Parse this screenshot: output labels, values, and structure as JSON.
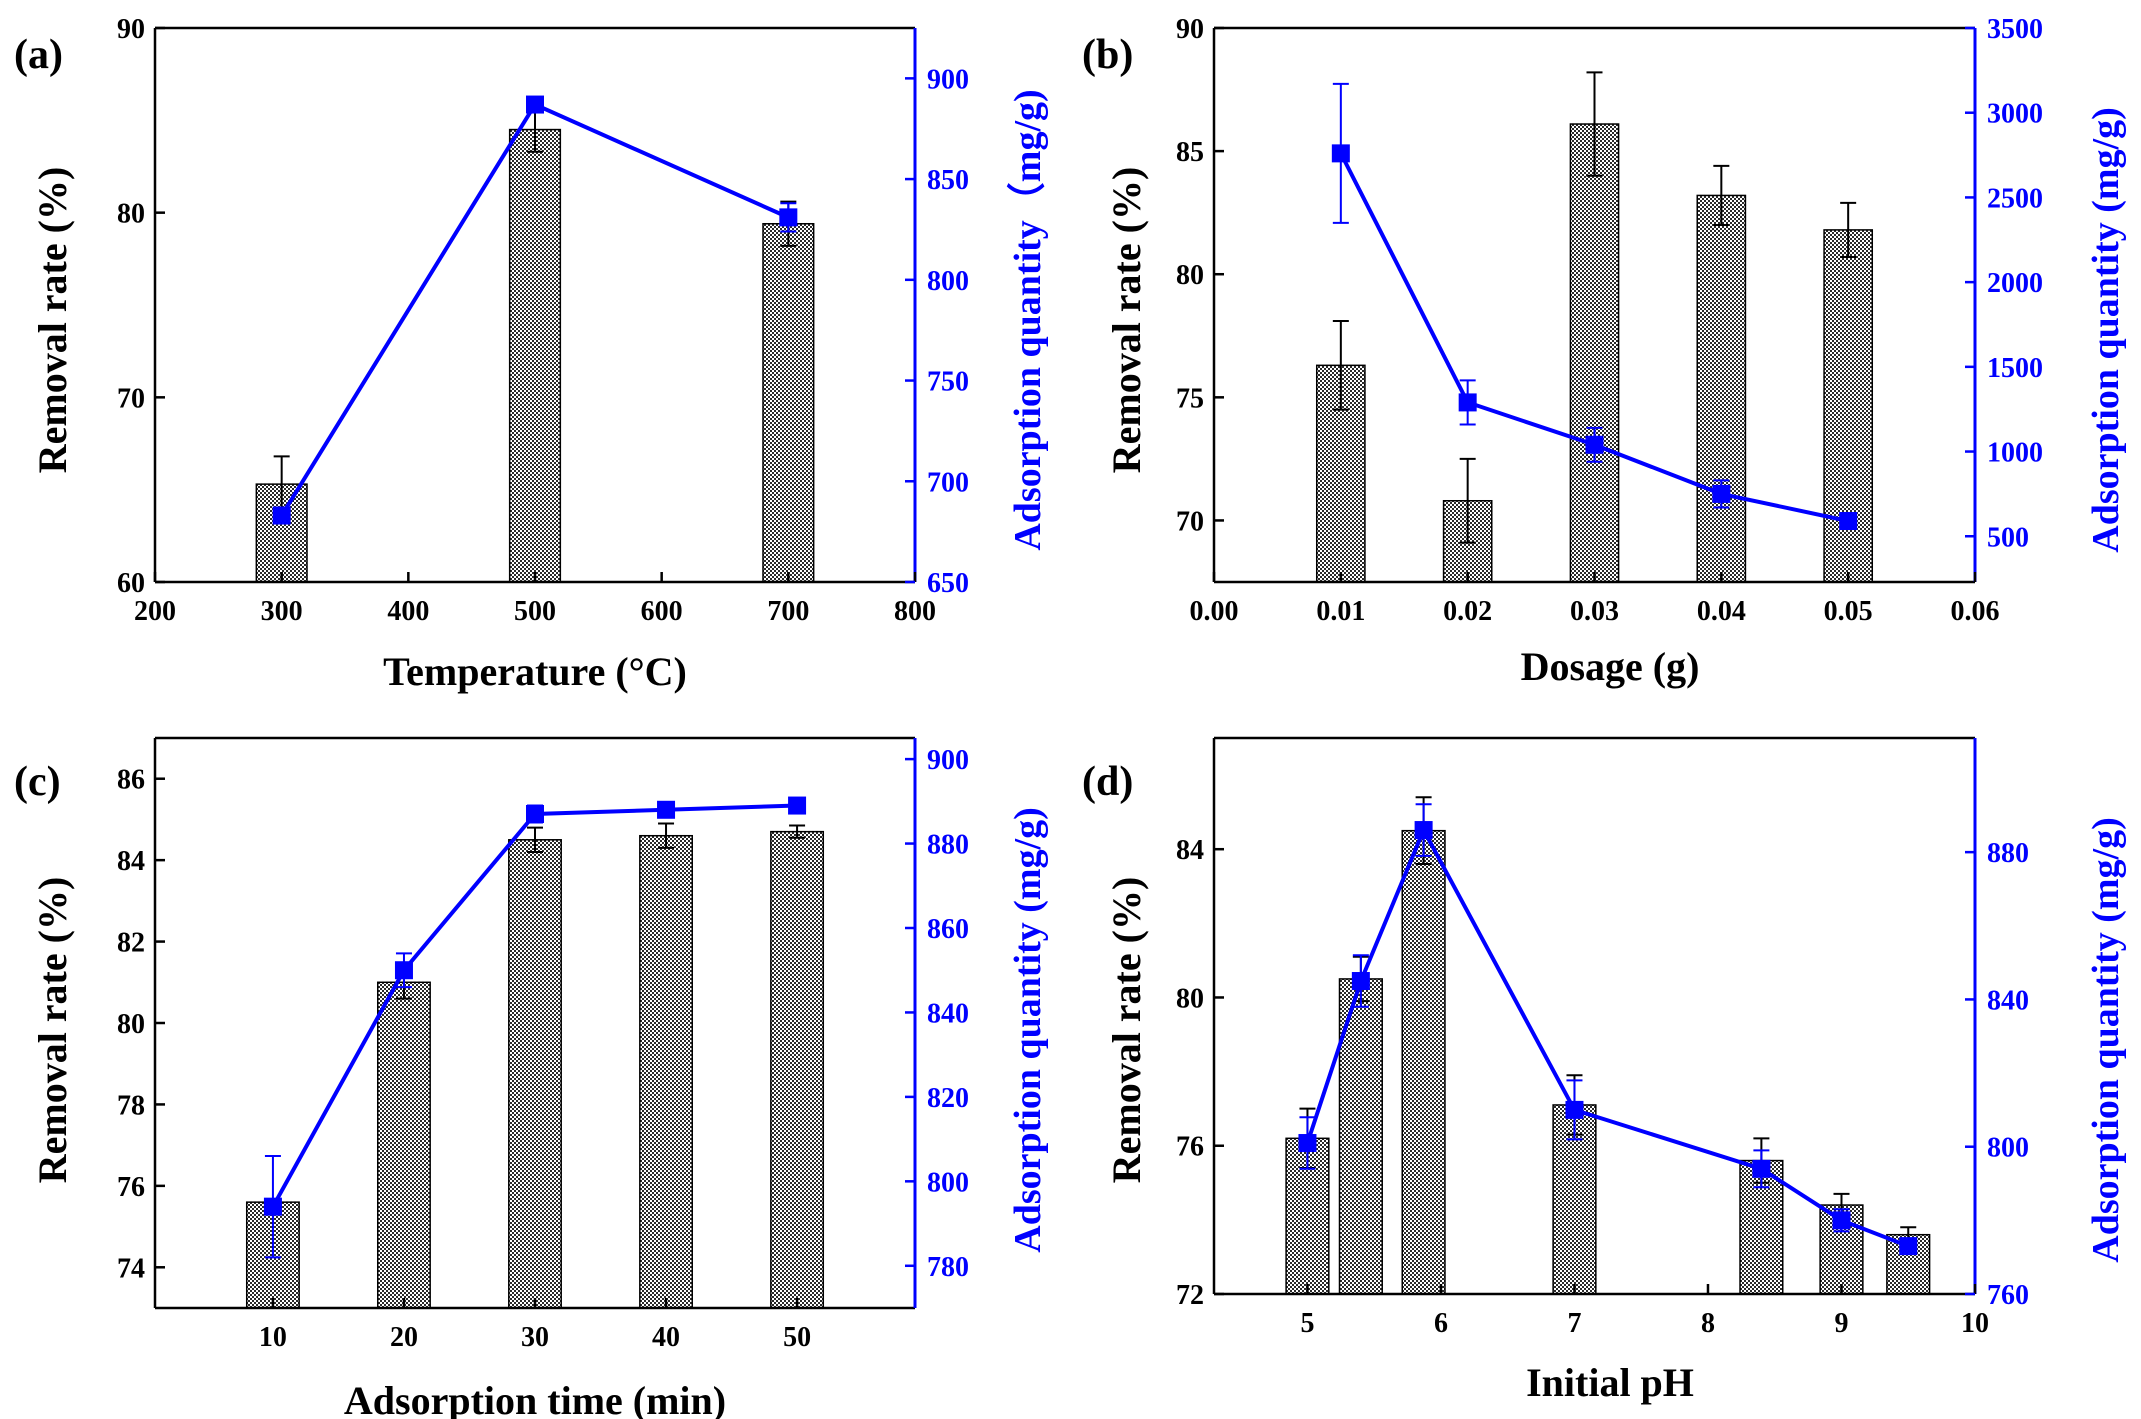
{
  "colors": {
    "bar_fill": "#9a9a9a",
    "line": "#0000ff",
    "axis_left": "#000000",
    "axis_right": "#0000ff"
  },
  "chart_data": [
    {
      "id": "a",
      "panel_label": "(a)",
      "type": "bar+line",
      "xlabel": "Temperature (°C)",
      "ylabel": "Removal rate (%)",
      "y2label": "Adsorption quantity（mg/g)",
      "xlim": [
        200,
        800
      ],
      "xticks": [
        200,
        300,
        400,
        500,
        600,
        700,
        800
      ],
      "xtick_labels": [
        "200",
        "300",
        "400",
        "500",
        "600",
        "700",
        "800"
      ],
      "ylim": [
        60,
        90
      ],
      "yticks": [
        60,
        70,
        80,
        90
      ],
      "ytick_labels": [
        "60",
        "70",
        "80",
        "90"
      ],
      "y2lim": [
        650,
        925
      ],
      "y2ticks": [
        650,
        700,
        750,
        800,
        850,
        900
      ],
      "y2tick_labels": [
        "650",
        "700",
        "750",
        "800",
        "850",
        "900"
      ],
      "bar_width": 40,
      "bars": [
        {
          "x": 300,
          "value": 65.3,
          "err": 1.5
        },
        {
          "x": 500,
          "value": 84.5,
          "err": 1.2
        },
        {
          "x": 700,
          "value": 79.4,
          "err": 1.2
        }
      ],
      "line": [
        {
          "x": 300,
          "value": 683,
          "err": 0
        },
        {
          "x": 500,
          "value": 887,
          "err": 0
        },
        {
          "x": 700,
          "value": 831,
          "err": 7
        }
      ]
    },
    {
      "id": "b",
      "panel_label": "(b)",
      "type": "bar+line",
      "xlabel": "Dosage (g)",
      "ylabel": "Removal rate (%)",
      "y2label": "Adsorption quantity (mg/g)",
      "xlim": [
        0,
        0.06
      ],
      "xticks": [
        0,
        0.01,
        0.02,
        0.03,
        0.04,
        0.05,
        0.06
      ],
      "xtick_labels": [
        "0.00",
        "0.01",
        "0.02",
        "0.03",
        "0.04",
        "0.05",
        "0.06"
      ],
      "ylim": [
        67.5,
        90
      ],
      "yticks": [
        70,
        75,
        80,
        85,
        90
      ],
      "ytick_labels": [
        "70",
        "75",
        "80",
        "85",
        "90"
      ],
      "y2lim": [
        230,
        3500
      ],
      "y2ticks": [
        500,
        1000,
        1500,
        2000,
        2500,
        3000,
        3500
      ],
      "y2tick_labels": [
        "500",
        "1000",
        "1500",
        "2000",
        "2500",
        "3000",
        "3500"
      ],
      "bar_width": 0.0038,
      "bars": [
        {
          "x": 0.01,
          "value": 76.3,
          "err": 1.8
        },
        {
          "x": 0.02,
          "value": 70.8,
          "err": 1.7
        },
        {
          "x": 0.03,
          "value": 86.1,
          "err": 2.1
        },
        {
          "x": 0.04,
          "value": 83.2,
          "err": 1.2
        },
        {
          "x": 0.05,
          "value": 81.8,
          "err": 1.1
        }
      ],
      "line": [
        {
          "x": 0.01,
          "value": 2760,
          "err": 410
        },
        {
          "x": 0.02,
          "value": 1290,
          "err": 130
        },
        {
          "x": 0.03,
          "value": 1040,
          "err": 100
        },
        {
          "x": 0.04,
          "value": 750,
          "err": 80
        },
        {
          "x": 0.05,
          "value": 590,
          "err": 0
        }
      ]
    },
    {
      "id": "c",
      "panel_label": "(c)",
      "type": "bar+line",
      "xlabel": "Adsorption time (min)",
      "ylabel": "Removal rate (%)",
      "y2label": "Adsorption quantity (mg/g)",
      "xlim": [
        1,
        59
      ],
      "xticks": [
        10,
        20,
        30,
        40,
        50
      ],
      "xtick_labels": [
        "10",
        "20",
        "30",
        "40",
        "50"
      ],
      "ylim": [
        73,
        87
      ],
      "yticks": [
        74,
        76,
        78,
        80,
        82,
        84,
        86
      ],
      "ytick_labels": [
        "74",
        "76",
        "78",
        "80",
        "82",
        "84",
        "86"
      ],
      "y2lim": [
        770,
        905
      ],
      "y2ticks": [
        780,
        800,
        820,
        840,
        860,
        880,
        900
      ],
      "y2tick_labels": [
        "780",
        "800",
        "820",
        "840",
        "860",
        "880",
        "900"
      ],
      "bar_width": 4,
      "bars": [
        {
          "x": 10,
          "value": 75.6,
          "err": 0
        },
        {
          "x": 20,
          "value": 81.0,
          "err": 0.4
        },
        {
          "x": 30,
          "value": 84.5,
          "err": 0.3
        },
        {
          "x": 40,
          "value": 84.6,
          "err": 0.3
        },
        {
          "x": 50,
          "value": 84.7,
          "err": 0.15
        }
      ],
      "line": [
        {
          "x": 10,
          "value": 794,
          "err": 12
        },
        {
          "x": 20,
          "value": 850,
          "err": 4
        },
        {
          "x": 30,
          "value": 887,
          "err": 2
        },
        {
          "x": 40,
          "value": 888,
          "err": 0
        },
        {
          "x": 50,
          "value": 889,
          "err": 0
        }
      ]
    },
    {
      "id": "d",
      "panel_label": "(d)",
      "type": "bar+line",
      "xlabel": "Initial pH",
      "ylabel": "Removal rate (%)",
      "y2label": "Adsorption quantity (mg/g)",
      "xlim": [
        4.3,
        10
      ],
      "xticks": [
        5,
        6,
        7,
        8,
        9,
        10
      ],
      "xtick_labels": [
        "5",
        "6",
        "7",
        "8",
        "9",
        "10"
      ],
      "ylim": [
        72,
        87
      ],
      "yticks": [
        72,
        76,
        80,
        84
      ],
      "ytick_labels": [
        "72",
        "76",
        "80",
        "84"
      ],
      "y2lim": [
        760,
        911
      ],
      "y2ticks": [
        760,
        800,
        840,
        880
      ],
      "y2tick_labels": [
        "760",
        "800",
        "840",
        "880"
      ],
      "bar_width": 0.32,
      "bars": [
        {
          "x": 5.0,
          "value": 76.2,
          "err": 0.8
        },
        {
          "x": 5.4,
          "value": 80.5,
          "err": 0.6
        },
        {
          "x": 5.87,
          "value": 84.5,
          "err": 0.9
        },
        {
          "x": 7.0,
          "value": 77.1,
          "err": 0.8
        },
        {
          "x": 8.4,
          "value": 75.6,
          "err": 0.6
        },
        {
          "x": 9.0,
          "value": 74.4,
          "err": 0.3
        },
        {
          "x": 9.5,
          "value": 73.6,
          "err": 0.2
        }
      ],
      "line": [
        {
          "x": 5.0,
          "value": 801,
          "err": 7
        },
        {
          "x": 5.4,
          "value": 845,
          "err": 7
        },
        {
          "x": 5.87,
          "value": 886,
          "err": 7
        },
        {
          "x": 7.0,
          "value": 810,
          "err": 8
        },
        {
          "x": 8.4,
          "value": 794,
          "err": 5
        },
        {
          "x": 9.0,
          "value": 780,
          "err": 3
        },
        {
          "x": 9.5,
          "value": 773,
          "err": 2
        }
      ]
    }
  ]
}
